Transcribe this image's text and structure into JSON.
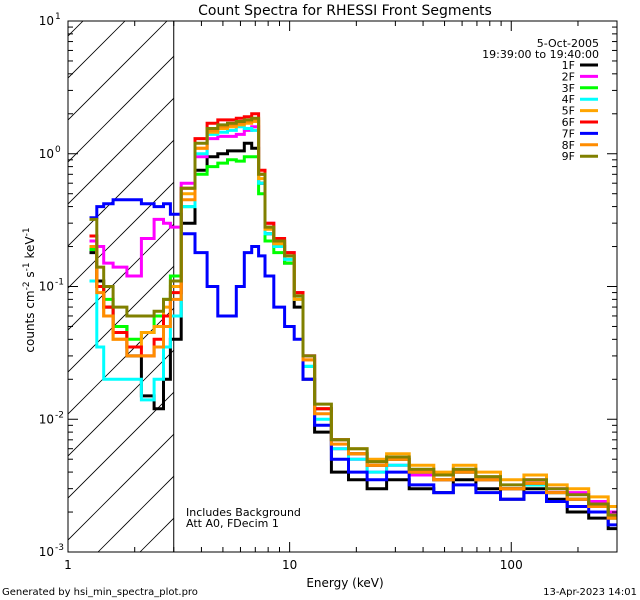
{
  "chart_data": {
    "type": "line",
    "title": "Count Spectra for RHESSI Front Segments",
    "xlabel": "Energy (keV)",
    "ylabel_parts": {
      "a": "counts cm",
      "b": "-2",
      "c": " s",
      "d": "-1",
      "e": " keV",
      "f": "-1"
    },
    "x_scale": "log",
    "y_scale": "log",
    "xlim": [
      1,
      300
    ],
    "ylim": [
      0.001,
      10
    ],
    "x_ticks": [
      {
        "v": 1,
        "label": "1"
      },
      {
        "v": 10,
        "label": "10"
      },
      {
        "v": 100,
        "label": "100"
      }
    ],
    "y_ticks": [
      {
        "v": 10,
        "base": "10",
        "exp": "1"
      },
      {
        "v": 1,
        "base": "10",
        "exp": "0"
      },
      {
        "v": 0.1,
        "base": "10",
        "exp": "-1"
      },
      {
        "v": 0.01,
        "base": "10",
        "exp": "-2"
      },
      {
        "v": 0.001,
        "base": "10",
        "exp": "-3"
      }
    ],
    "excluded_region": [
      1,
      3
    ],
    "annotations": {
      "date": "5-Oct-2005",
      "time_range": "19:39:00 to 19:40:00",
      "background": "Includes Background",
      "attenuator": "Att A0, FDecim 1"
    },
    "footer": {
      "left": "Generated by hsi_min_spectra_plot.pro",
      "right": "13-Apr-2023 14:01"
    },
    "series": [
      {
        "name": "1F",
        "color": "#000000",
        "x": [
          1.3,
          1.4,
          1.5,
          1.7,
          2.0,
          2.3,
          2.6,
          2.8,
          3.0,
          3.5,
          4.0,
          4.5,
          5.0,
          5.5,
          6.0,
          6.5,
          7.0,
          7.5,
          8.0,
          9.0,
          10,
          11,
          12,
          14,
          17,
          20,
          25,
          30,
          40,
          50,
          60,
          80,
          100,
          130,
          160,
          200,
          250,
          300
        ],
        "y": [
          0.18,
          0.11,
          0.07,
          0.05,
          0.03,
          0.015,
          0.012,
          0.02,
          0.04,
          0.3,
          0.75,
          0.95,
          1.0,
          1.05,
          1.05,
          1.2,
          1.1,
          0.6,
          0.25,
          0.2,
          0.15,
          0.07,
          0.02,
          0.008,
          0.004,
          0.0035,
          0.003,
          0.0035,
          0.003,
          0.0028,
          0.0035,
          0.003,
          0.0025,
          0.003,
          0.0025,
          0.002,
          0.0018,
          0.0015
        ]
      },
      {
        "name": "2F",
        "color": "#ff00ff",
        "x": [
          1.3,
          1.4,
          1.5,
          1.7,
          2.0,
          2.3,
          2.6,
          2.8,
          3.0,
          3.5,
          4.0,
          4.5,
          5.0,
          5.5,
          6.0,
          6.5,
          7.0,
          7.5,
          8.0,
          9.0,
          10,
          11,
          12,
          14,
          17,
          20,
          25,
          30,
          40,
          50,
          60,
          80,
          100,
          130,
          160,
          200,
          250,
          300
        ],
        "y": [
          0.22,
          0.2,
          0.15,
          0.14,
          0.12,
          0.23,
          0.32,
          0.3,
          0.28,
          0.6,
          0.95,
          1.3,
          1.35,
          1.35,
          1.4,
          1.5,
          1.6,
          0.7,
          0.3,
          0.22,
          0.18,
          0.09,
          0.03,
          0.012,
          0.006,
          0.005,
          0.004,
          0.0045,
          0.0038,
          0.0035,
          0.004,
          0.0035,
          0.003,
          0.0035,
          0.003,
          0.0028,
          0.0024,
          0.002
        ]
      },
      {
        "name": "3F",
        "color": "#00ff00",
        "x": [
          1.3,
          1.4,
          1.5,
          1.7,
          2.0,
          2.3,
          2.6,
          2.8,
          3.0,
          3.5,
          4.0,
          4.5,
          5.0,
          5.5,
          6.0,
          6.5,
          7.0,
          7.5,
          8.0,
          9.0,
          10,
          11,
          12,
          14,
          17,
          20,
          25,
          30,
          40,
          50,
          60,
          80,
          100,
          130,
          160,
          200,
          250,
          300
        ],
        "y": [
          0.19,
          0.1,
          0.08,
          0.05,
          0.04,
          0.045,
          0.06,
          0.08,
          0.12,
          0.4,
          0.7,
          0.8,
          0.85,
          0.9,
          0.88,
          0.95,
          0.95,
          0.5,
          0.22,
          0.18,
          0.15,
          0.08,
          0.025,
          0.012,
          0.007,
          0.0055,
          0.0045,
          0.005,
          0.004,
          0.0035,
          0.004,
          0.0035,
          0.003,
          0.0032,
          0.0028,
          0.0025,
          0.0022,
          0.0018
        ]
      },
      {
        "name": "4F",
        "color": "#00ffff",
        "x": [
          1.3,
          1.4,
          1.5,
          1.7,
          2.0,
          2.3,
          2.6,
          2.8,
          3.0,
          3.5,
          4.0,
          4.5,
          5.0,
          5.5,
          6.0,
          6.5,
          7.0,
          7.5,
          8.0,
          9.0,
          10,
          11,
          12,
          14,
          17,
          20,
          25,
          30,
          40,
          50,
          60,
          80,
          100,
          130,
          160,
          200,
          250,
          300
        ],
        "y": [
          0.11,
          0.035,
          0.02,
          0.02,
          0.02,
          0.014,
          0.02,
          0.035,
          0.06,
          0.4,
          1.0,
          1.4,
          1.45,
          1.5,
          1.6,
          1.55,
          1.5,
          0.6,
          0.25,
          0.2,
          0.16,
          0.08,
          0.025,
          0.01,
          0.006,
          0.005,
          0.004,
          0.0045,
          0.004,
          0.0035,
          0.004,
          0.0035,
          0.003,
          0.0032,
          0.0028,
          0.0025,
          0.0022,
          0.0018
        ]
      },
      {
        "name": "5F",
        "color": "#ffa500",
        "x": [
          1.3,
          1.4,
          1.5,
          1.7,
          2.0,
          2.3,
          2.6,
          2.8,
          3.0,
          3.5,
          4.0,
          4.5,
          5.0,
          5.5,
          6.0,
          6.5,
          7.0,
          7.5,
          8.0,
          9.0,
          10,
          11,
          12,
          14,
          17,
          20,
          25,
          30,
          40,
          50,
          60,
          80,
          100,
          130,
          160,
          200,
          250,
          300
        ],
        "y": [
          0.2,
          0.1,
          0.06,
          0.04,
          0.035,
          0.045,
          0.05,
          0.07,
          0.1,
          0.5,
          1.1,
          1.45,
          1.55,
          1.6,
          1.65,
          1.7,
          1.75,
          0.65,
          0.27,
          0.21,
          0.17,
          0.08,
          0.028,
          0.012,
          0.007,
          0.006,
          0.005,
          0.0055,
          0.0045,
          0.004,
          0.0045,
          0.004,
          0.0035,
          0.0038,
          0.0032,
          0.003,
          0.0026,
          0.0022
        ]
      },
      {
        "name": "6F",
        "color": "#ff0000",
        "x": [
          1.3,
          1.4,
          1.5,
          1.7,
          2.0,
          2.3,
          2.6,
          2.8,
          3.0,
          3.5,
          4.0,
          4.5,
          5.0,
          5.5,
          6.0,
          6.5,
          7.0,
          7.5,
          8.0,
          9.0,
          10,
          11,
          12,
          14,
          17,
          20,
          25,
          30,
          40,
          50,
          60,
          80,
          100,
          130,
          160,
          200,
          250,
          300
        ],
        "y": [
          0.24,
          0.1,
          0.07,
          0.045,
          0.035,
          0.03,
          0.04,
          0.06,
          0.09,
          0.55,
          1.3,
          1.7,
          1.8,
          1.8,
          1.85,
          1.9,
          2.0,
          0.75,
          0.3,
          0.23,
          0.18,
          0.09,
          0.03,
          0.012,
          0.007,
          0.0055,
          0.0045,
          0.005,
          0.004,
          0.0035,
          0.004,
          0.0035,
          0.003,
          0.0033,
          0.0028,
          0.0025,
          0.0022,
          0.0018
        ]
      },
      {
        "name": "7F",
        "color": "#0000ff",
        "x": [
          1.3,
          1.4,
          1.5,
          1.7,
          2.0,
          2.3,
          2.6,
          2.8,
          3.0,
          3.5,
          4.0,
          4.5,
          5.0,
          5.5,
          6.0,
          6.5,
          7.0,
          7.5,
          8.0,
          9.0,
          10,
          11,
          12,
          14,
          17,
          20,
          25,
          30,
          40,
          50,
          60,
          80,
          100,
          130,
          160,
          200,
          250,
          300
        ],
        "y": [
          0.33,
          0.4,
          0.42,
          0.45,
          0.45,
          0.42,
          0.4,
          0.42,
          0.35,
          0.25,
          0.18,
          0.1,
          0.06,
          0.06,
          0.1,
          0.18,
          0.2,
          0.17,
          0.12,
          0.07,
          0.05,
          0.04,
          0.02,
          0.009,
          0.005,
          0.004,
          0.0035,
          0.004,
          0.0032,
          0.0028,
          0.0032,
          0.0028,
          0.0025,
          0.0028,
          0.0024,
          0.0022,
          0.002,
          0.0016
        ]
      },
      {
        "name": "8F",
        "color": "#ff8c00",
        "x": [
          1.3,
          1.4,
          1.5,
          1.7,
          2.0,
          2.3,
          2.6,
          2.8,
          3.0,
          3.5,
          4.0,
          4.5,
          5.0,
          5.5,
          6.0,
          6.5,
          7.0,
          7.5,
          8.0,
          9.0,
          10,
          11,
          12,
          14,
          17,
          20,
          25,
          30,
          40,
          50,
          60,
          80,
          100,
          130,
          160,
          200,
          250,
          300
        ],
        "y": [
          0.2,
          0.09,
          0.06,
          0.04,
          0.03,
          0.03,
          0.035,
          0.05,
          0.08,
          0.45,
          1.1,
          1.5,
          1.6,
          1.65,
          1.7,
          1.75,
          1.8,
          0.7,
          0.28,
          0.22,
          0.17,
          0.085,
          0.028,
          0.011,
          0.0065,
          0.0055,
          0.0045,
          0.005,
          0.004,
          0.0035,
          0.004,
          0.0035,
          0.003,
          0.0033,
          0.0028,
          0.0025,
          0.0022,
          0.0018
        ]
      },
      {
        "name": "9F",
        "color": "#808000",
        "x": [
          1.3,
          1.4,
          1.5,
          1.7,
          2.0,
          2.3,
          2.6,
          2.8,
          3.0,
          3.5,
          4.0,
          4.5,
          5.0,
          5.5,
          6.0,
          6.5,
          7.0,
          7.5,
          8.0,
          9.0,
          10,
          11,
          12,
          14,
          17,
          20,
          25,
          30,
          40,
          50,
          60,
          80,
          100,
          130,
          160,
          200,
          250,
          300
        ],
        "y": [
          0.32,
          0.14,
          0.1,
          0.07,
          0.06,
          0.06,
          0.065,
          0.08,
          0.11,
          0.55,
          1.2,
          1.55,
          1.65,
          1.7,
          1.75,
          1.8,
          1.85,
          0.7,
          0.28,
          0.22,
          0.17,
          0.085,
          0.03,
          0.013,
          0.007,
          0.006,
          0.0048,
          0.0052,
          0.0042,
          0.0038,
          0.0042,
          0.0037,
          0.0032,
          0.0035,
          0.003,
          0.0027,
          0.0023,
          0.0019
        ]
      }
    ]
  }
}
